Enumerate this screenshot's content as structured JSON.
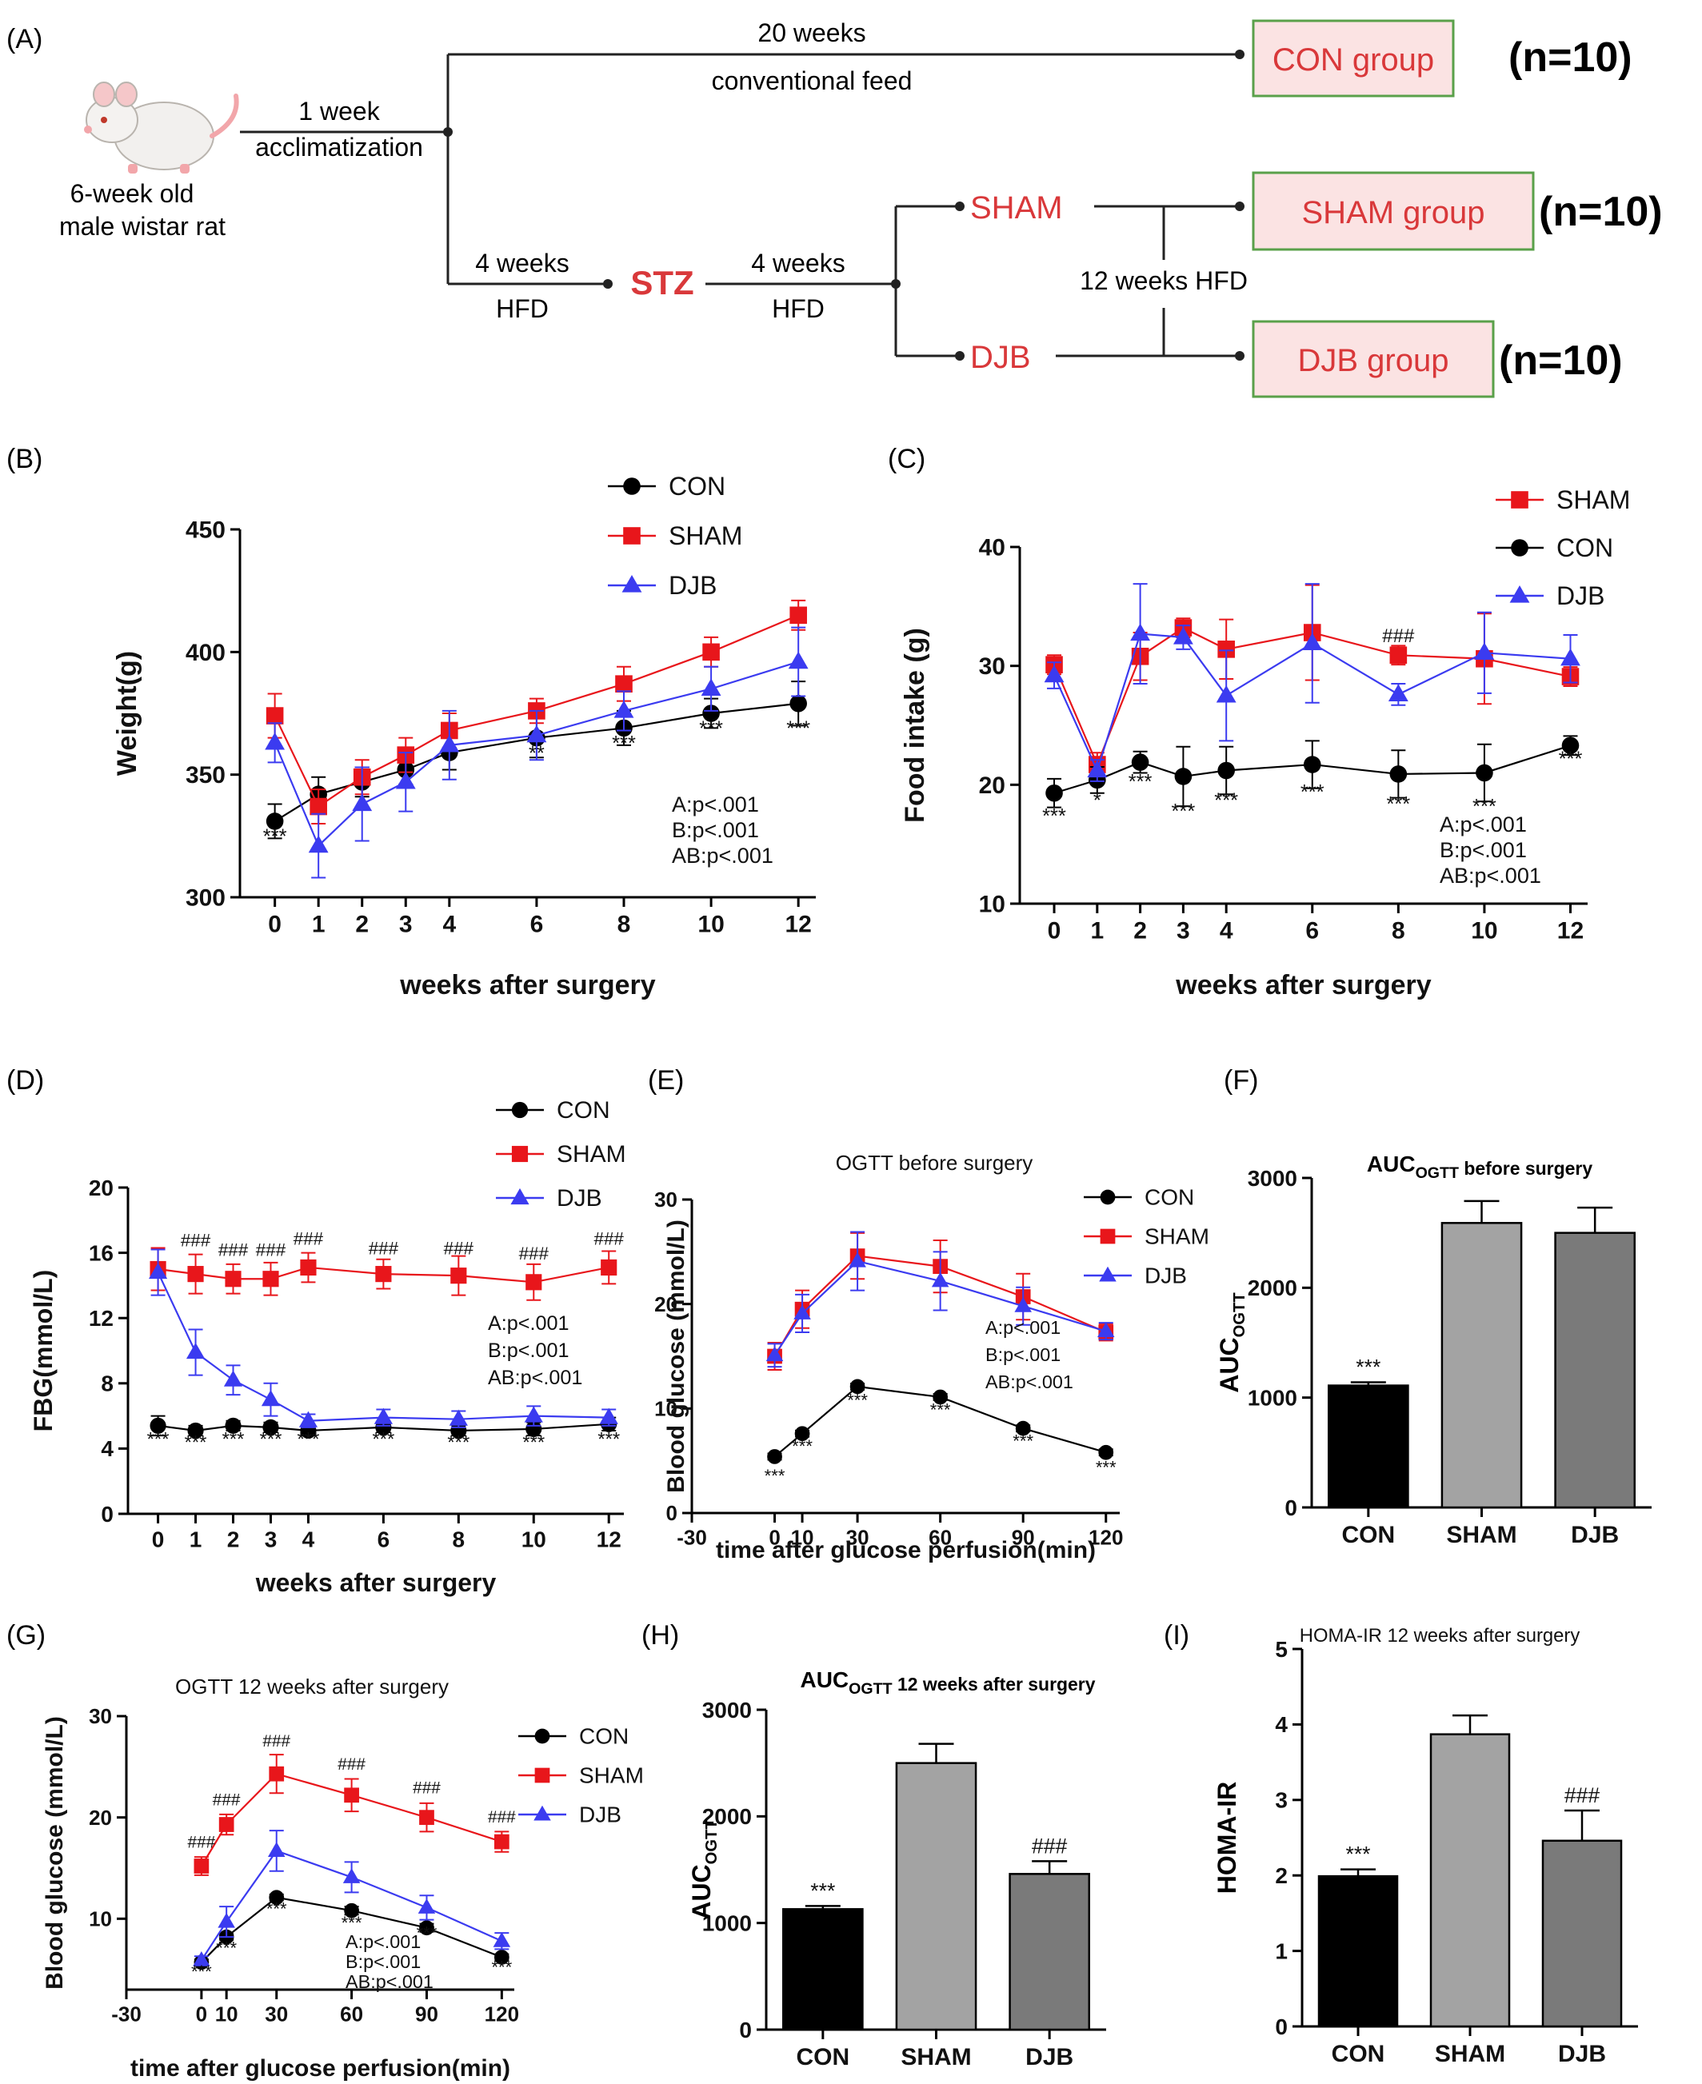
{
  "panel_labels": {
    "A": "(A)",
    "B": "(B)",
    "C": "(C)",
    "D": "(D)",
    "E": "(E)",
    "F": "(F)",
    "G": "(G)",
    "H": "(H)",
    "I": "(I)"
  },
  "flow": {
    "rat_label_1": "6-week old",
    "rat_label_2": "male wistar rat",
    "acclim_1": "1 week",
    "acclim_2": "acclimatization",
    "top_1": "20 weeks",
    "top_2": "conventional feed",
    "hfd1_1": "4 weeks",
    "hfd1_2": "HFD",
    "stz": "STZ",
    "hfd2_1": "4 weeks",
    "hfd2_2": "HFD",
    "sham": "SHAM",
    "djb": "DJB",
    "hfd12": "12 weeks HFD",
    "box_con": "CON group",
    "box_sham": "SHAM group",
    "box_djb": "DJB group",
    "n_con": "(n=10)",
    "n_sham": "(n=10)",
    "n_djb": "(n=10)",
    "colors": {
      "red": "#d9383a",
      "box_border": "#5aa04a",
      "box_fill": "#fbe3e3"
    }
  },
  "chart_data": [
    {
      "id": "B",
      "type": "line",
      "xlabel": "weeks after surgery",
      "ylabel": "Weight(g)",
      "x": [
        0,
        1,
        2,
        3,
        4,
        6,
        8,
        10,
        12
      ],
      "xticks": [
        0,
        1,
        2,
        3,
        4,
        6,
        8,
        10,
        12
      ],
      "xlim": [
        -0.8,
        12.4
      ],
      "yticks": [
        300,
        350,
        400,
        450
      ],
      "ylim": [
        300,
        450
      ],
      "series": [
        {
          "name": "CON",
          "color": "#000000",
          "marker": "circle",
          "values": [
            331,
            342,
            347,
            352,
            359,
            365,
            369,
            375,
            379
          ],
          "err": [
            7,
            7,
            6,
            6,
            7,
            8,
            7,
            6,
            9
          ]
        },
        {
          "name": "SHAM",
          "color": "#e8161b",
          "marker": "square",
          "values": [
            374,
            337,
            349,
            358,
            368,
            376,
            387,
            400,
            415
          ],
          "err": [
            9,
            7,
            7,
            7,
            7,
            5,
            7,
            6,
            6
          ]
        },
        {
          "name": "DJB",
          "color": "#3b3bf0",
          "marker": "triangle",
          "values": [
            363,
            321,
            338,
            347,
            362,
            366,
            376,
            385,
            396
          ],
          "err": [
            8,
            13,
            15,
            12,
            14,
            10,
            8,
            9,
            14
          ]
        }
      ],
      "sig_below": [
        {
          "x": 0,
          "y": 322,
          "t": "***"
        },
        {
          "x": 6,
          "y": 356,
          "t": "**"
        },
        {
          "x": 8,
          "y": 360,
          "t": "***"
        },
        {
          "x": 10,
          "y": 366,
          "t": "***"
        },
        {
          "x": 12,
          "y": 366,
          "t": "***"
        }
      ],
      "stats": [
        "A:p<.001",
        "B:p<.001",
        "AB:p<.001"
      ]
    },
    {
      "id": "C",
      "type": "line",
      "xlabel": "weeks after surgery",
      "ylabel": "Food intake (g)",
      "x": [
        0,
        1,
        2,
        3,
        4,
        6,
        8,
        10,
        12
      ],
      "xticks": [
        0,
        1,
        2,
        3,
        4,
        6,
        8,
        10,
        12
      ],
      "xlim": [
        -0.8,
        12.4
      ],
      "yticks": [
        10,
        20,
        30,
        40
      ],
      "ylim": [
        10,
        40
      ],
      "series": [
        {
          "name": "SHAM",
          "color": "#e8161b",
          "marker": "square",
          "values": [
            30.1,
            21.7,
            30.8,
            33.2,
            31.4,
            32.8,
            30.9,
            30.6,
            29.1
          ],
          "err": [
            0.8,
            1.0,
            2.0,
            0.8,
            2.5,
            4.0,
            0.8,
            3.8,
            0.8
          ]
        },
        {
          "name": "CON",
          "color": "#000000",
          "marker": "circle",
          "values": [
            19.3,
            20.4,
            21.9,
            20.7,
            21.2,
            21.7,
            20.9,
            21.0,
            23.3
          ],
          "err": [
            1.2,
            1.1,
            0.9,
            2.5,
            2.0,
            2.0,
            2.0,
            2.4,
            0.8
          ]
        },
        {
          "name": "DJB",
          "color": "#3b3bf0",
          "marker": "triangle",
          "values": [
            29.2,
            21.2,
            32.7,
            32.4,
            27.5,
            31.9,
            27.6,
            31.1,
            30.6
          ],
          "err": [
            1.1,
            0.9,
            4.2,
            1.0,
            3.8,
            5.0,
            0.9,
            3.4,
            2.0
          ]
        }
      ],
      "sig_below": [
        {
          "x": 0,
          "y": 16.8,
          "t": "***"
        },
        {
          "x": 1,
          "y": 18.1,
          "t": "*"
        },
        {
          "x": 2,
          "y": 19.7,
          "t": "***"
        },
        {
          "x": 3,
          "y": 17.2,
          "t": "***"
        },
        {
          "x": 4,
          "y": 18.1,
          "t": "***"
        },
        {
          "x": 6,
          "y": 18.8,
          "t": "***"
        },
        {
          "x": 8,
          "y": 17.8,
          "t": "***"
        },
        {
          "x": 10,
          "y": 17.6,
          "t": "***"
        },
        {
          "x": 12,
          "y": 21.6,
          "t": "***"
        }
      ],
      "sig_above": [
        {
          "x": 8,
          "y": 32.0,
          "t": "###"
        }
      ],
      "stats": [
        "A:p<.001",
        "B:p<.001",
        "AB:p<.001"
      ]
    },
    {
      "id": "D",
      "type": "line",
      "xlabel": "weeks after surgery",
      "ylabel": "FBG(mmol/L)",
      "x": [
        0,
        1,
        2,
        3,
        4,
        6,
        8,
        10,
        12
      ],
      "xticks": [
        0,
        1,
        2,
        3,
        4,
        6,
        8,
        10,
        12
      ],
      "xlim": [
        -0.8,
        12.4
      ],
      "yticks": [
        0,
        4,
        8,
        12,
        16,
        20
      ],
      "ylim": [
        0,
        20
      ],
      "series": [
        {
          "name": "CON",
          "color": "#000000",
          "marker": "circle",
          "values": [
            5.4,
            5.1,
            5.4,
            5.3,
            5.1,
            5.3,
            5.1,
            5.2,
            5.5
          ],
          "err": [
            0.6,
            0.3,
            0.3,
            0.3,
            0.3,
            0.3,
            0.3,
            0.4,
            0.4
          ]
        },
        {
          "name": "SHAM",
          "color": "#e8161b",
          "marker": "square",
          "values": [
            15.0,
            14.7,
            14.4,
            14.4,
            15.1,
            14.7,
            14.6,
            14.2,
            15.1
          ],
          "err": [
            1.3,
            1.2,
            0.9,
            1.0,
            0.9,
            0.9,
            1.2,
            1.1,
            1.0
          ]
        },
        {
          "name": "DJB",
          "color": "#3b3bf0",
          "marker": "triangle",
          "values": [
            14.8,
            9.9,
            8.2,
            7.0,
            5.7,
            5.9,
            5.8,
            6.0,
            5.9
          ],
          "err": [
            1.4,
            1.4,
            0.9,
            1.0,
            0.4,
            0.5,
            0.5,
            0.6,
            0.5
          ]
        }
      ],
      "sig_below": [
        {
          "x": 0,
          "y": 4.2,
          "t": "***"
        },
        {
          "x": 1,
          "y": 4.0,
          "t": "***"
        },
        {
          "x": 2,
          "y": 4.2,
          "t": "***"
        },
        {
          "x": 3,
          "y": 4.2,
          "t": "***"
        },
        {
          "x": 4,
          "y": 4.2,
          "t": "***"
        },
        {
          "x": 6,
          "y": 4.2,
          "t": "***"
        },
        {
          "x": 8,
          "y": 4.0,
          "t": "***"
        },
        {
          "x": 10,
          "y": 4.0,
          "t": "***"
        },
        {
          "x": 12,
          "y": 4.2,
          "t": "***"
        }
      ],
      "sig_above": [
        {
          "x": 1,
          "y": 16.4,
          "t": "###"
        },
        {
          "x": 2,
          "y": 15.8,
          "t": "###"
        },
        {
          "x": 3,
          "y": 15.8,
          "t": "###"
        },
        {
          "x": 4,
          "y": 16.5,
          "t": "###"
        },
        {
          "x": 6,
          "y": 15.9,
          "t": "###"
        },
        {
          "x": 8,
          "y": 15.9,
          "t": "###"
        },
        {
          "x": 10,
          "y": 15.6,
          "t": "###"
        },
        {
          "x": 12,
          "y": 16.5,
          "t": "###"
        }
      ],
      "stats": [
        "A:p<.001",
        "B:p<.001",
        "AB:p<.001"
      ]
    },
    {
      "id": "E",
      "type": "line",
      "title": "OGTT before surgery",
      "xlabel": "time after glucose perfusion(min)",
      "ylabel": "Blood glucose (mmol/L)",
      "x": [
        0,
        10,
        30,
        60,
        90,
        120
      ],
      "xticks": [
        -30,
        0,
        10,
        30,
        60,
        90,
        120
      ],
      "xlim": [
        -30,
        125
      ],
      "yticks": [
        0,
        10,
        20,
        30
      ],
      "ylim": [
        0,
        30
      ],
      "series": [
        {
          "name": "CON",
          "color": "#000000",
          "marker": "circle",
          "values": [
            5.4,
            7.6,
            12.1,
            11.1,
            8.1,
            5.8
          ],
          "err": [
            0.3,
            0.3,
            0.3,
            0.3,
            0.3,
            0.3
          ]
        },
        {
          "name": "SHAM",
          "color": "#e8161b",
          "marker": "square",
          "values": [
            15.0,
            19.5,
            24.6,
            23.6,
            20.7,
            17.3
          ],
          "err": [
            1.3,
            1.8,
            2.2,
            2.5,
            2.2,
            0.8
          ]
        },
        {
          "name": "DJB",
          "color": "#3b3bf0",
          "marker": "triangle",
          "values": [
            15.1,
            19.1,
            24.1,
            22.2,
            19.8,
            17.4
          ],
          "err": [
            1.1,
            1.8,
            2.8,
            2.8,
            1.8,
            0.8
          ]
        }
      ],
      "sig_below": [
        {
          "x": 0,
          "y": 3.0,
          "t": "***"
        },
        {
          "x": 10,
          "y": 5.8,
          "t": "***"
        },
        {
          "x": 30,
          "y": 10.2,
          "t": "***"
        },
        {
          "x": 60,
          "y": 9.3,
          "t": "***"
        },
        {
          "x": 90,
          "y": 6.3,
          "t": "***"
        },
        {
          "x": 120,
          "y": 3.8,
          "t": "***"
        }
      ],
      "stats": [
        "A:p<.001",
        "B:p<.001",
        "AB:p<.001"
      ]
    },
    {
      "id": "F",
      "type": "bar",
      "title_main": "AUC",
      "title_sub": "OGTT",
      "title_rest": " before surgery",
      "ylabel_main": "AUC",
      "ylabel_sub": "OGTT",
      "categories": [
        "CON",
        "SHAM",
        "DJB"
      ],
      "values": [
        1110,
        2590,
        2500
      ],
      "err": [
        30,
        200,
        230
      ],
      "colors": [
        "#000000",
        "#a3a3a3",
        "#7a7a7a"
      ],
      "yticks": [
        0,
        1000,
        2000,
        3000
      ],
      "ylim": [
        0,
        3000
      ],
      "sig": [
        {
          "i": 0,
          "t": "***"
        }
      ]
    },
    {
      "id": "G",
      "type": "line",
      "title": "OGTT 12 weeks after surgery",
      "xlabel": "time after glucose perfusion(min)",
      "ylabel": "Blood glucose (mmol/L)",
      "x": [
        0,
        10,
        30,
        60,
        90,
        120
      ],
      "xticks": [
        -30,
        0,
        10,
        30,
        60,
        90,
        120
      ],
      "xlim": [
        -30,
        125
      ],
      "yticks": [
        10,
        20,
        30
      ],
      "ylim": [
        3,
        30
      ],
      "series": [
        {
          "name": "CON",
          "color": "#000000",
          "marker": "circle",
          "values": [
            5.7,
            8.2,
            12.1,
            10.8,
            9.1,
            6.2
          ],
          "err": [
            0.3,
            0.3,
            0.3,
            0.4,
            0.4,
            0.3
          ]
        },
        {
          "name": "SHAM",
          "color": "#e8161b",
          "marker": "square",
          "values": [
            15.2,
            19.3,
            24.3,
            22.2,
            20.0,
            17.6
          ],
          "err": [
            0.9,
            1.0,
            1.9,
            1.6,
            1.4,
            1.0
          ]
        },
        {
          "name": "DJB",
          "color": "#3b3bf0",
          "marker": "triangle",
          "values": [
            5.9,
            9.7,
            16.7,
            14.1,
            11.1,
            7.8
          ],
          "err": [
            0.4,
            1.5,
            2.0,
            1.5,
            1.2,
            0.8
          ]
        }
      ],
      "sig_below": [
        {
          "x": 0,
          "y": 4.2,
          "t": "***"
        },
        {
          "x": 10,
          "y": 6.5,
          "t": "***"
        },
        {
          "x": 30,
          "y": 10.4,
          "t": "***"
        },
        {
          "x": 60,
          "y": 9.0,
          "t": "***"
        },
        {
          "x": 90,
          "y": 8.0,
          "t": "***"
        },
        {
          "x": 120,
          "y": 4.6,
          "t": "***"
        }
      ],
      "sig_above": [
        {
          "x": 0,
          "y": 17.0,
          "t": "###"
        },
        {
          "x": 10,
          "y": 21.2,
          "t": "###"
        },
        {
          "x": 30,
          "y": 27.0,
          "t": "###"
        },
        {
          "x": 60,
          "y": 24.7,
          "t": "###"
        },
        {
          "x": 90,
          "y": 22.4,
          "t": "###"
        },
        {
          "x": 120,
          "y": 19.5,
          "t": "###"
        }
      ],
      "stats": [
        "A:p<.001",
        "B:p<.001",
        "AB:p<.001"
      ]
    },
    {
      "id": "H",
      "type": "bar",
      "title_main": "AUC",
      "title_sub": "OGTT",
      "title_rest": " 12 weeks after surgery",
      "ylabel_main": "AUC",
      "ylabel_sub": "OGTT",
      "categories": [
        "CON",
        "SHAM",
        "DJB"
      ],
      "values": [
        1130,
        2500,
        1460
      ],
      "err": [
        30,
        180,
        120
      ],
      "colors": [
        "#000000",
        "#a3a3a3",
        "#7a7a7a"
      ],
      "yticks": [
        0,
        1000,
        2000,
        3000
      ],
      "ylim": [
        0,
        3000
      ],
      "sig": [
        {
          "i": 0,
          "t": "***"
        },
        {
          "i": 2,
          "t": "###"
        }
      ]
    },
    {
      "id": "I",
      "type": "bar",
      "title": "HOMA-IR 12 weeks after surgery",
      "ylabel": "HOMA-IR",
      "categories": [
        "CON",
        "SHAM",
        "DJB"
      ],
      "values": [
        1.99,
        3.87,
        2.46
      ],
      "err": [
        0.09,
        0.25,
        0.4
      ],
      "colors": [
        "#000000",
        "#a3a3a3",
        "#7a7a7a"
      ],
      "yticks": [
        0,
        1,
        2,
        3,
        4,
        5
      ],
      "ylim": [
        0,
        5
      ],
      "sig": [
        {
          "i": 0,
          "t": "***"
        },
        {
          "i": 2,
          "t": "###"
        }
      ]
    }
  ]
}
